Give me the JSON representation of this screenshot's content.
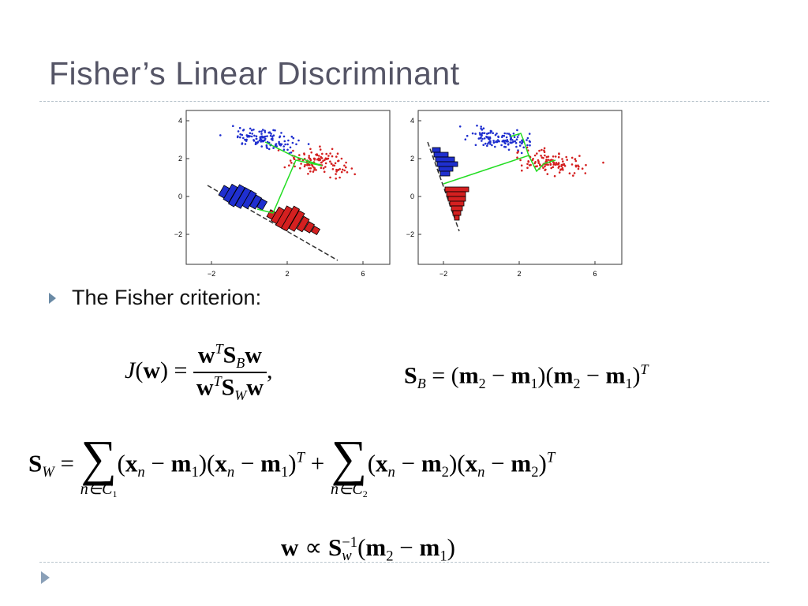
{
  "slide": {
    "title": "Fisher’s Linear Discriminant",
    "bullet": "The Fisher criterion:",
    "colors": {
      "title": "#555566",
      "accent": "#6a8aa5",
      "class1": "#1f2fcf",
      "class2": "#d42020",
      "projection": "#22dd22"
    }
  },
  "figures": [
    {
      "xticks": [
        "−2",
        "2",
        "6"
      ],
      "yticks": [
        "4",
        "2",
        "0",
        "−2"
      ]
    },
    {
      "xticks": [
        "−2",
        "2",
        "6"
      ],
      "yticks": [
        "4",
        "2",
        "0",
        "−2"
      ]
    }
  ],
  "equations": {
    "J": "J",
    "w": "w",
    "S": "S",
    "m": "m",
    "x": "x",
    "T": "T",
    "B": "B",
    "W": "W",
    "wl": "w",
    "n": "n",
    "one": "1",
    "two": "2",
    "inv": "−1",
    "c1": "n∈C",
    "c2": "n∈C",
    "sigma": "∑"
  }
}
